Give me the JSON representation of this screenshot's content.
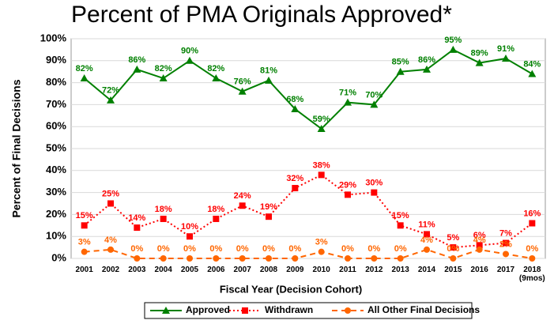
{
  "chart_data": {
    "type": "line",
    "title": "Percent of PMA Originals Approved*",
    "x_label": "Fiscal Year (Decision Cohort)",
    "y_label": "Percent of Final Decisions",
    "categories": [
      "2001",
      "2002",
      "2003",
      "2004",
      "2005",
      "2006",
      "2007",
      "2008",
      "2009",
      "2010",
      "2011",
      "2012",
      "2013",
      "2014",
      "2015",
      "2016",
      "2017",
      "2018\n(9mos)"
    ],
    "ylim": [
      0,
      100
    ],
    "yticks": [
      {
        "value": 0,
        "label": "0%"
      },
      {
        "value": 10,
        "label": "10%"
      },
      {
        "value": 20,
        "label": "20%"
      },
      {
        "value": 30,
        "label": "30%"
      },
      {
        "value": 40,
        "label": "40%"
      },
      {
        "value": 50,
        "label": "50%"
      },
      {
        "value": 60,
        "label": "60%"
      },
      {
        "value": 70,
        "label": "70%"
      },
      {
        "value": 80,
        "label": "80%"
      },
      {
        "value": 90,
        "label": "90%"
      },
      {
        "value": 100,
        "label": "100%"
      }
    ],
    "grid": true,
    "series": [
      {
        "name": "Approved",
        "color": "#008000",
        "marker": "triangle",
        "dash": "solid",
        "values": [
          82,
          72,
          86,
          82,
          90,
          82,
          76,
          81,
          68,
          59,
          71,
          70,
          85,
          86,
          95,
          89,
          91,
          84
        ],
        "value_labels": [
          "82%",
          "72%",
          "86%",
          "82%",
          "90%",
          "82%",
          "76%",
          "81%",
          "68%",
          "59%",
          "71%",
          "70%",
          "85%",
          "86%",
          "95%",
          "89%",
          "91%",
          "84%"
        ]
      },
      {
        "name": "Withdrawn",
        "color": "#ff0000",
        "marker": "square",
        "dash": "dotted",
        "values": [
          15,
          25,
          14,
          18,
          10,
          18,
          24,
          19,
          32,
          38,
          29,
          30,
          15,
          11,
          5,
          6,
          7,
          16
        ],
        "value_labels": [
          "15%",
          "25%",
          "14%",
          "18%",
          "10%",
          "18%",
          "24%",
          "19%",
          "32%",
          "38%",
          "29%",
          "30%",
          "15%",
          "11%",
          "5%",
          "6%",
          "7%",
          "16%"
        ]
      },
      {
        "name": "All Other Final Decisions",
        "color": "#ff6600",
        "marker": "circle",
        "dash": "dashed",
        "values": [
          3,
          4,
          0,
          0,
          0,
          0,
          0,
          0,
          0,
          3,
          0,
          0,
          0,
          4,
          0,
          4,
          2,
          0
        ],
        "value_labels": [
          "3%",
          "4%",
          "0%",
          "0%",
          "0%",
          "0%",
          "0%",
          "0%",
          "0%",
          "3%",
          "0%",
          "0%",
          "0%",
          "4%",
          "0%",
          "4%",
          "2%",
          "0%"
        ]
      }
    ],
    "legend": "bottom"
  }
}
